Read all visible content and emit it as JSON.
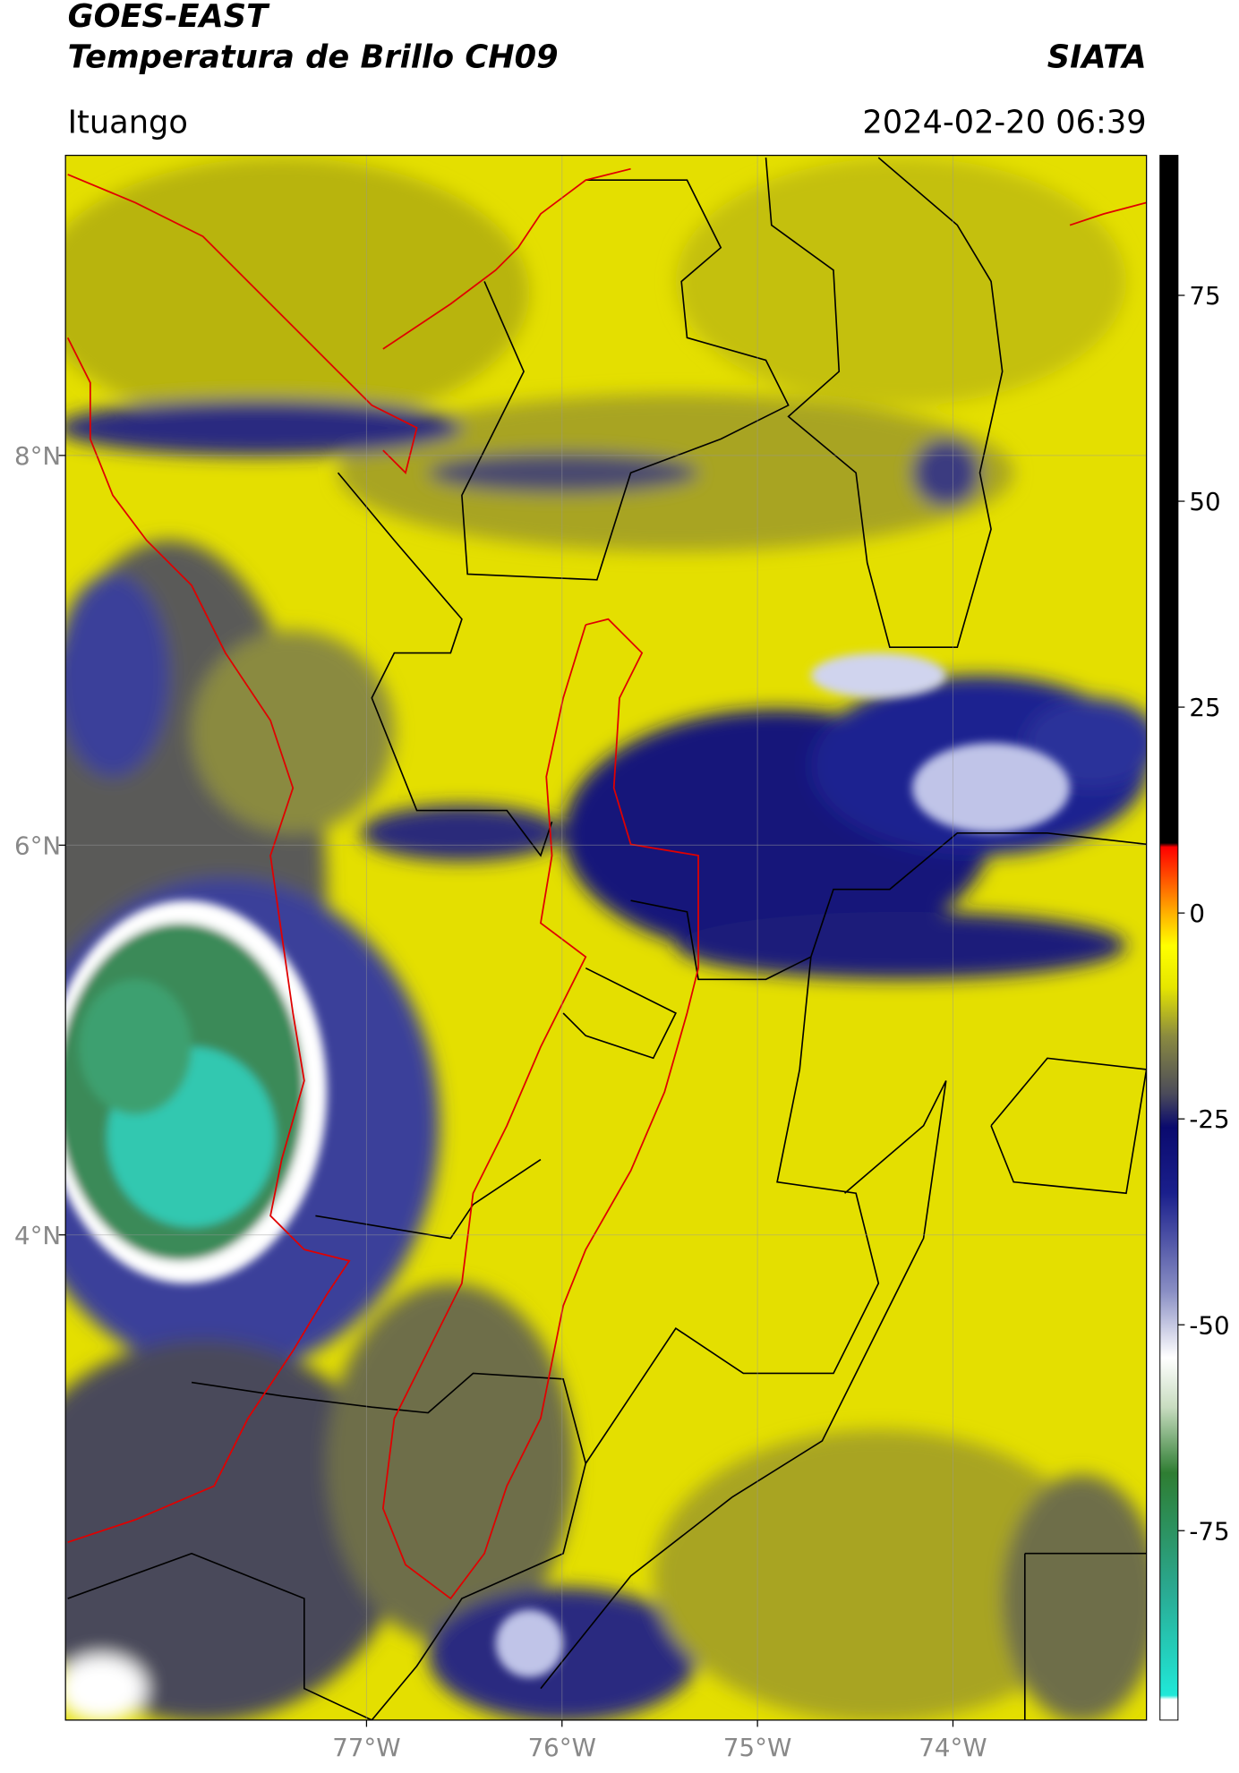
{
  "header": {
    "satellite": "GOES-EAST",
    "product": "Temperatura de Brillo CH09",
    "organization": "SIATA",
    "location": "Ituango",
    "datetime": "2024-02-20 06:39"
  },
  "map": {
    "xlim": [
      -78.54,
      -73.01
    ],
    "ylim": [
      1.51,
      9.54
    ],
    "xticks": [
      {
        "value": -77,
        "label": "77°W"
      },
      {
        "value": -76,
        "label": "76°W"
      },
      {
        "value": -75,
        "label": "75°W"
      },
      {
        "value": -74,
        "label": "74°W"
      }
    ],
    "yticks": [
      {
        "value": 8,
        "label": "8°N"
      },
      {
        "value": 6,
        "label": "6°N"
      },
      {
        "value": 4,
        "label": "4°N"
      }
    ],
    "grid": true
  },
  "colorbar": {
    "lim": [
      -98,
      92
    ],
    "ticks": [
      75,
      50,
      25,
      0,
      -25,
      -50,
      -75
    ],
    "colormap": [
      {
        "value": -98,
        "color": "#ffffff"
      },
      {
        "value": -95.5,
        "color": "#ffffff"
      },
      {
        "value": -95,
        "color": "#20e8d8"
      },
      {
        "value": -82,
        "color": "#2aa890"
      },
      {
        "value": -68,
        "color": "#2e7d32"
      },
      {
        "value": -60,
        "color": "#c8dcc0"
      },
      {
        "value": -54,
        "color": "#ffffff"
      },
      {
        "value": -46,
        "color": "#8a8fc4"
      },
      {
        "value": -34,
        "color": "#1a1f8c"
      },
      {
        "value": -26,
        "color": "#0a0a6e"
      },
      {
        "value": -22,
        "color": "#4a4a5a"
      },
      {
        "value": -15,
        "color": "#8a8a40"
      },
      {
        "value": -9,
        "color": "#e6e600"
      },
      {
        "value": -4,
        "color": "#ffff00"
      },
      {
        "value": 0,
        "color": "#ffb000"
      },
      {
        "value": 5,
        "color": "#ff4000"
      },
      {
        "value": 8,
        "color": "#ff0000"
      },
      {
        "value": 8.5,
        "color": "#000000"
      },
      {
        "value": 92,
        "color": "#000000"
      }
    ]
  }
}
